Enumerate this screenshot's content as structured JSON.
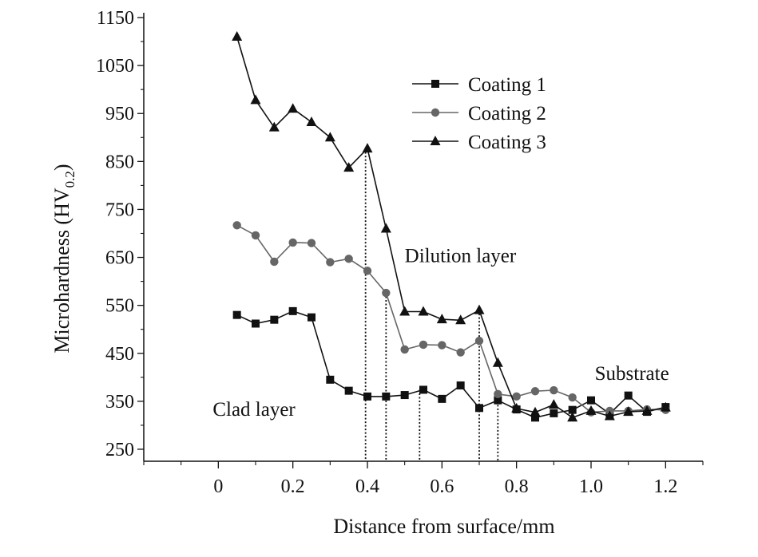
{
  "chart_data": {
    "type": "line",
    "title": "",
    "xlabel": "Distance from surface/mm",
    "ylabel_main": "Microhardness (HV",
    "ylabel_sub": "0.2",
    "ylabel_close": ")",
    "xlim": [
      -0.2,
      1.3
    ],
    "ylim": [
      225,
      1160
    ],
    "xticks": [
      0,
      0.2,
      0.4,
      0.6,
      0.8,
      1.0,
      1.2
    ],
    "xtick_labels": [
      "0",
      "0.2",
      "0.4",
      "0.6",
      "0.8",
      "1.0",
      "1.2"
    ],
    "yticks": [
      250,
      350,
      450,
      550,
      650,
      750,
      850,
      950,
      1050,
      1150
    ],
    "ytick_labels": [
      "250",
      "350",
      "450",
      "550",
      "650",
      "750",
      "850",
      "950",
      "1050",
      "1150"
    ],
    "grid": false,
    "legend_position": "top-right",
    "series": [
      {
        "name": "Coating 1",
        "marker": "square",
        "color": "#111111",
        "x": [
          0.05,
          0.1,
          0.15,
          0.2,
          0.25,
          0.3,
          0.35,
          0.4,
          0.45,
          0.5,
          0.55,
          0.6,
          0.65,
          0.7,
          0.75,
          0.8,
          0.85,
          0.9,
          0.95,
          1.0,
          1.05,
          1.1,
          1.15,
          1.2
        ],
        "y": [
          530,
          512,
          520,
          538,
          525,
          395,
          372,
          360,
          360,
          363,
          374,
          355,
          383,
          336,
          352,
          333,
          316,
          325,
          332,
          352,
          324,
          362,
          328,
          338
        ]
      },
      {
        "name": "Coating 2",
        "marker": "circle",
        "color": "#666666",
        "x": [
          0.05,
          0.1,
          0.15,
          0.2,
          0.25,
          0.3,
          0.35,
          0.4,
          0.45,
          0.5,
          0.55,
          0.6,
          0.65,
          0.7,
          0.75,
          0.8,
          0.85,
          0.9,
          0.95,
          1.0,
          1.05,
          1.1,
          1.15,
          1.2
        ],
        "y": [
          717,
          696,
          641,
          681,
          680,
          640,
          647,
          622,
          576,
          458,
          468,
          467,
          452,
          476,
          365,
          360,
          371,
          373,
          358,
          327,
          330,
          330,
          333,
          332
        ]
      },
      {
        "name": "Coating 3",
        "marker": "triangle",
        "color": "#111111",
        "x": [
          0.05,
          0.1,
          0.15,
          0.2,
          0.25,
          0.3,
          0.35,
          0.4,
          0.45,
          0.5,
          0.55,
          0.6,
          0.65,
          0.7,
          0.75,
          0.8,
          0.85,
          0.9,
          0.95,
          1.0,
          1.05,
          1.1,
          1.15,
          1.2
        ],
        "y": [
          1110,
          978,
          921,
          960,
          932,
          900,
          837,
          877,
          710,
          537,
          537,
          521,
          519,
          540,
          430,
          335,
          327,
          343,
          316,
          330,
          319,
          328,
          330,
          337
        ]
      }
    ],
    "dotted_verticals": [
      {
        "x": 0.395,
        "y_top": 877
      },
      {
        "x": 0.45,
        "y_top": 576
      },
      {
        "x": 0.54,
        "y_top": 374
      },
      {
        "x": 0.7,
        "y_top": 540
      },
      {
        "x": 0.75,
        "y_top": 365
      }
    ],
    "annotations": [
      {
        "text": "Dilution layer",
        "x": 0.5,
        "y": 640
      },
      {
        "text": "Clad layer",
        "x": -0.015,
        "y": 320
      },
      {
        "text": "Substrate",
        "x": 1.01,
        "y": 395
      }
    ]
  }
}
